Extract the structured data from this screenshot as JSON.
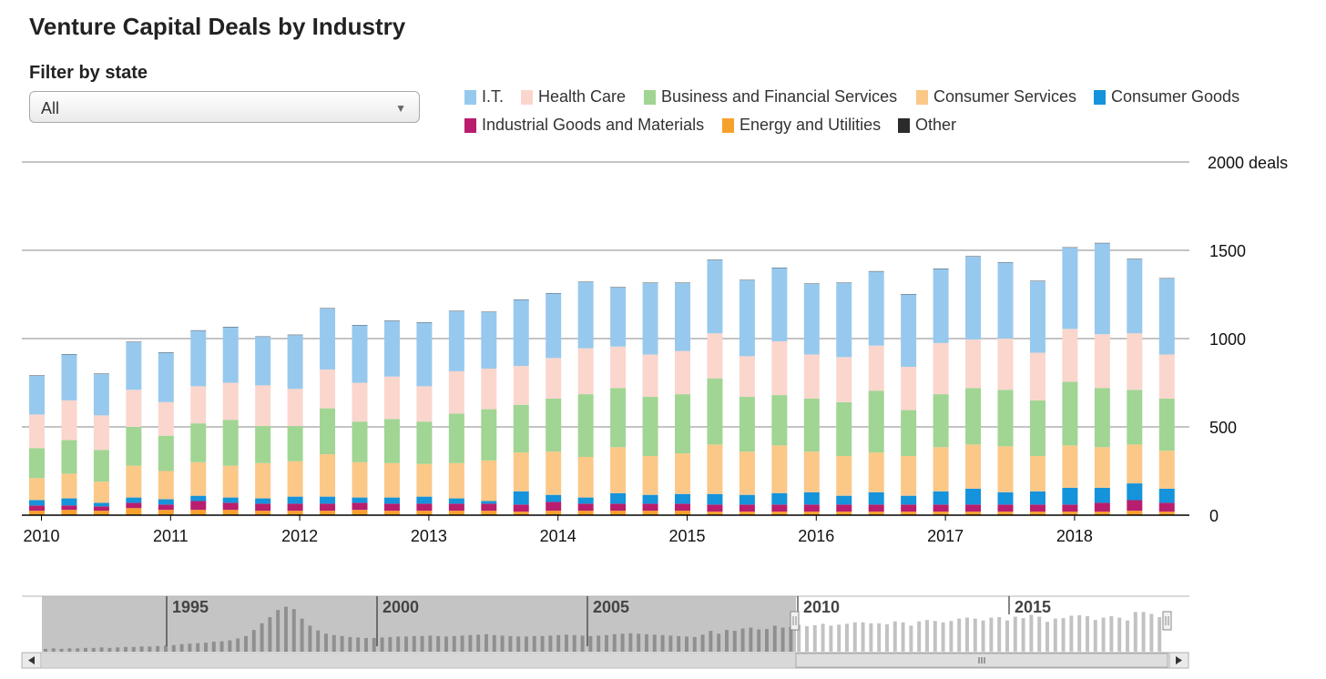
{
  "title": "Venture Capital Deals by Industry",
  "filter": {
    "label": "Filter by state",
    "value": "All"
  },
  "colors": {
    "it": "#97c9ee",
    "health_care": "#fbd6cd",
    "business_financial": "#a0d593",
    "consumer_services": "#fbc888",
    "consumer_goods": "#1593db",
    "industrial_goods": "#b91e6e",
    "energy_utilities": "#f7a12d",
    "other": "#2b2b2b"
  },
  "chart_data": {
    "type": "bar",
    "stacked": true,
    "title": "Venture Capital Deals by Industry",
    "y_unit_label": "2000 deals",
    "ylim": [
      0,
      2000
    ],
    "y_ticks": [
      "0",
      "500",
      "1000",
      "1500",
      "2000 deals"
    ],
    "x_tick_labels": [
      "2010",
      "2011",
      "2012",
      "2013",
      "2014",
      "2015",
      "2016",
      "2017",
      "2018"
    ],
    "grid": true,
    "legend_position": "top",
    "categories": [
      "2010 Q1",
      "2010 Q2",
      "2010 Q3",
      "2010 Q4",
      "2011 Q1",
      "2011 Q2",
      "2011 Q3",
      "2011 Q4",
      "2012 Q1",
      "2012 Q2",
      "2012 Q3",
      "2012 Q4",
      "2013 Q1",
      "2013 Q2",
      "2013 Q3",
      "2013 Q4",
      "2014 Q1",
      "2014 Q2",
      "2014 Q3",
      "2014 Q4",
      "2015 Q1",
      "2015 Q2",
      "2015 Q3",
      "2015 Q4",
      "2016 Q1",
      "2016 Q2",
      "2016 Q3",
      "2016 Q4",
      "2017 Q1",
      "2017 Q2",
      "2017 Q3",
      "2017 Q4",
      "2018 Q1",
      "2018 Q2",
      "2018 Q3",
      "2018 Q4"
    ],
    "series": [
      {
        "name": "Energy and Utilities",
        "key": "energy_utilities",
        "values": [
          25,
          30,
          25,
          40,
          30,
          30,
          30,
          25,
          25,
          25,
          30,
          25,
          25,
          25,
          25,
          20,
          25,
          25,
          25,
          25,
          25,
          20,
          20,
          20,
          20,
          20,
          20,
          20,
          20,
          20,
          20,
          20,
          20,
          20,
          25,
          20
        ]
      },
      {
        "name": "Industrial Goods and Materials",
        "key": "industrial_goods",
        "values": [
          30,
          25,
          25,
          30,
          30,
          50,
          40,
          40,
          40,
          40,
          40,
          40,
          40,
          40,
          40,
          40,
          50,
          40,
          40,
          40,
          40,
          40,
          40,
          40,
          40,
          40,
          40,
          40,
          40,
          40,
          40,
          40,
          40,
          50,
          60,
          50
        ]
      },
      {
        "name": "Consumer Goods",
        "key": "consumer_goods",
        "values": [
          30,
          40,
          20,
          30,
          30,
          30,
          30,
          30,
          40,
          40,
          30,
          35,
          40,
          30,
          15,
          75,
          40,
          35,
          60,
          50,
          55,
          60,
          55,
          65,
          70,
          50,
          70,
          50,
          75,
          90,
          70,
          75,
          95,
          85,
          95,
          80
        ]
      },
      {
        "name": "Consumer Services",
        "key": "consumer_services",
        "values": [
          125,
          140,
          120,
          180,
          160,
          190,
          180,
          200,
          200,
          240,
          200,
          195,
          185,
          200,
          230,
          220,
          245,
          230,
          260,
          220,
          230,
          280,
          245,
          270,
          230,
          225,
          225,
          225,
          250,
          250,
          260,
          200,
          240,
          230,
          220,
          215
        ]
      },
      {
        "name": "Business and Financial Services",
        "key": "business_financial",
        "values": [
          170,
          190,
          180,
          220,
          200,
          220,
          260,
          210,
          200,
          260,
          230,
          250,
          240,
          280,
          290,
          270,
          300,
          355,
          335,
          335,
          335,
          375,
          310,
          285,
          300,
          305,
          350,
          260,
          300,
          320,
          320,
          315,
          360,
          335,
          310,
          295
        ]
      },
      {
        "name": "Health Care",
        "key": "health_care",
        "values": [
          190,
          225,
          195,
          210,
          190,
          210,
          210,
          230,
          210,
          220,
          220,
          240,
          200,
          240,
          230,
          220,
          230,
          260,
          235,
          240,
          245,
          255,
          230,
          305,
          250,
          255,
          255,
          245,
          290,
          275,
          290,
          270,
          300,
          305,
          320,
          250
        ]
      },
      {
        "name": "I.T.",
        "key": "it",
        "values": [
          220,
          260,
          235,
          270,
          280,
          315,
          315,
          275,
          305,
          345,
          325,
          315,
          360,
          340,
          320,
          375,
          365,
          375,
          335,
          405,
          385,
          415,
          430,
          415,
          400,
          420,
          420,
          410,
          420,
          470,
          430,
          405,
          460,
          515,
          420,
          430
        ]
      },
      {
        "name": "Other",
        "key": "other",
        "values": [
          2,
          2,
          2,
          2,
          2,
          2,
          2,
          2,
          2,
          2,
          2,
          2,
          2,
          2,
          2,
          2,
          2,
          2,
          2,
          2,
          2,
          2,
          2,
          2,
          2,
          2,
          2,
          2,
          2,
          2,
          2,
          2,
          2,
          2,
          2,
          2
        ]
      }
    ],
    "legend_order": [
      "it",
      "health_care",
      "business_financial",
      "consumer_services",
      "consumer_goods",
      "industrial_goods",
      "energy_utilities",
      "other"
    ],
    "legend_labels": {
      "it": "I.T.",
      "health_care": "Health Care",
      "business_financial": "Business and Financial Services",
      "consumer_services": "Consumer Services",
      "consumer_goods": "Consumer Goods",
      "industrial_goods": "Industrial Goods and Materials",
      "energy_utilities": "Energy and Utilities",
      "other": "Other"
    }
  },
  "navigator": {
    "labels": [
      "1995",
      "2000",
      "2005",
      "2010",
      "2015"
    ],
    "selected_range": [
      "2010",
      "2018"
    ],
    "relative_totals": [
      0.06,
      0.07,
      0.06,
      0.07,
      0.07,
      0.08,
      0.08,
      0.09,
      0.08,
      0.09,
      0.1,
      0.1,
      0.11,
      0.11,
      0.12,
      0.13,
      0.14,
      0.16,
      0.17,
      0.18,
      0.19,
      0.21,
      0.22,
      0.24,
      0.28,
      0.33,
      0.46,
      0.6,
      0.73,
      0.88,
      0.95,
      0.9,
      0.7,
      0.55,
      0.45,
      0.38,
      0.35,
      0.33,
      0.31,
      0.3,
      0.29,
      0.29,
      0.3,
      0.31,
      0.32,
      0.32,
      0.33,
      0.33,
      0.34,
      0.33,
      0.32,
      0.33,
      0.34,
      0.35,
      0.36,
      0.37,
      0.35,
      0.34,
      0.33,
      0.32,
      0.32,
      0.33,
      0.33,
      0.34,
      0.35,
      0.36,
      0.35,
      0.34,
      0.33,
      0.34,
      0.35,
      0.37,
      0.38,
      0.39,
      0.38,
      0.37,
      0.36,
      0.35,
      0.34,
      0.33,
      0.32,
      0.31,
      0.36,
      0.44,
      0.38,
      0.46,
      0.44,
      0.49,
      0.51,
      0.47,
      0.48,
      0.55,
      0.51,
      0.52,
      0.57,
      0.54,
      0.56,
      0.59,
      0.55,
      0.57,
      0.59,
      0.62,
      0.62,
      0.6,
      0.6,
      0.58,
      0.64,
      0.62,
      0.55,
      0.64,
      0.67,
      0.65,
      0.62,
      0.65,
      0.7,
      0.72,
      0.7,
      0.66,
      0.72,
      0.73,
      0.66,
      0.74,
      0.71,
      0.78,
      0.74,
      0.63,
      0.7,
      0.71,
      0.76,
      0.77,
      0.75,
      0.67,
      0.72,
      0.75,
      0.72,
      0.66,
      0.84,
      0.84,
      0.8,
      0.73
    ]
  }
}
